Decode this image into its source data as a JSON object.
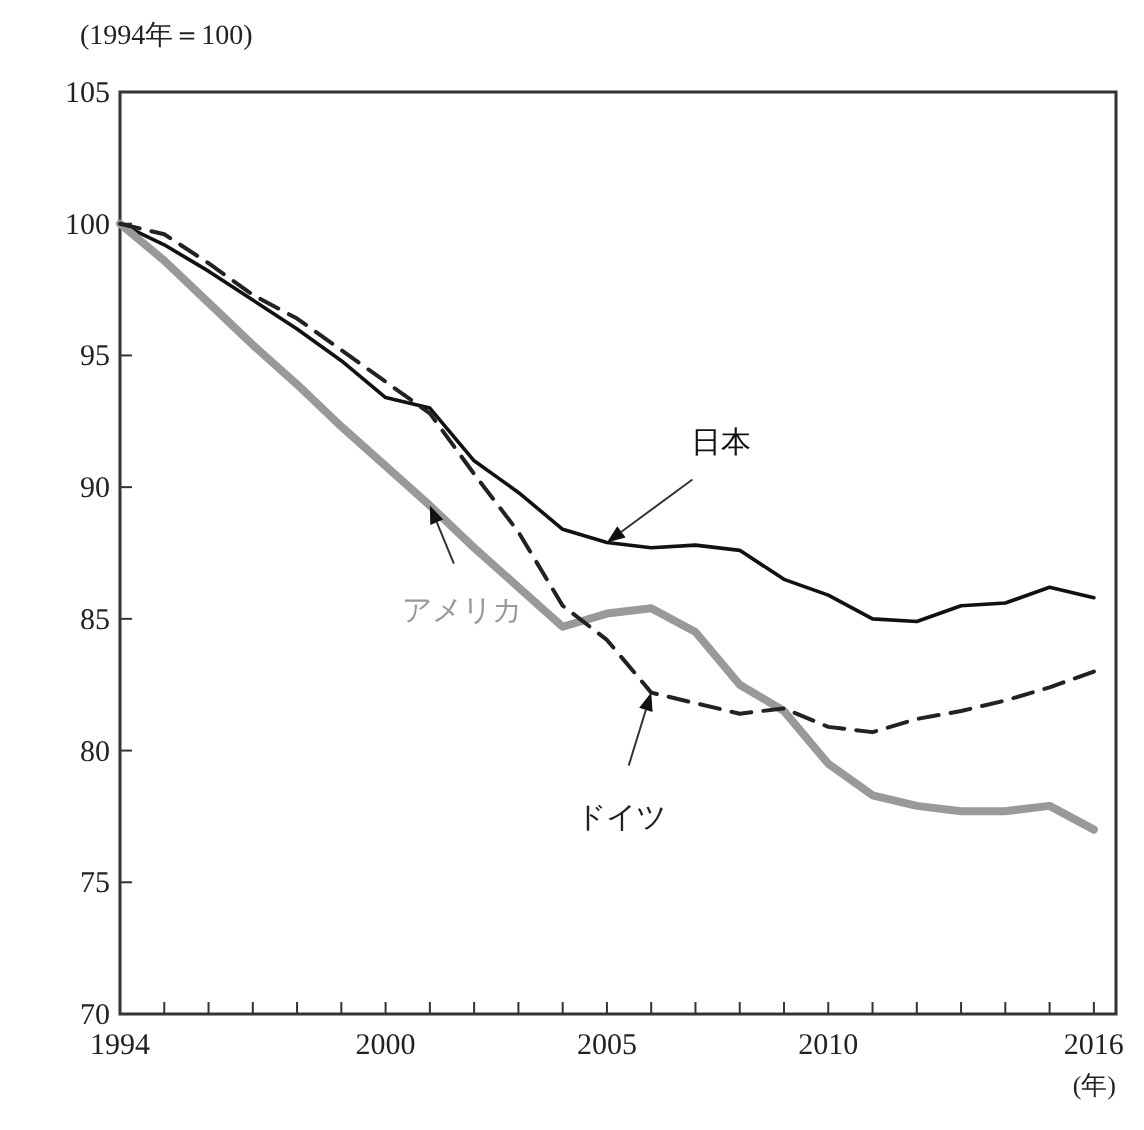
{
  "chart_data": {
    "type": "line",
    "ylabel": "(1994年＝100)",
    "xlabel": "(年)",
    "x": [
      1994,
      1995,
      1996,
      1997,
      1998,
      1999,
      2000,
      2001,
      2002,
      2003,
      2004,
      2005,
      2006,
      2007,
      2008,
      2009,
      2010,
      2011,
      2012,
      2013,
      2014,
      2015,
      2016
    ],
    "series": [
      {
        "name": "日本",
        "color": "#111111",
        "line_style": "solid",
        "values": [
          100,
          99.2,
          98.2,
          97.1,
          96.0,
          94.8,
          93.4,
          93.0,
          91.0,
          89.8,
          88.4,
          87.9,
          87.7,
          87.8,
          87.6,
          86.5,
          85.9,
          85.0,
          84.9,
          85.5,
          85.6,
          86.2,
          85.8
        ]
      },
      {
        "name": "アメリカ",
        "color": "#999999",
        "line_style": "solid",
        "values": [
          100,
          98.6,
          97.0,
          95.4,
          93.9,
          92.3,
          90.8,
          89.3,
          87.7,
          86.2,
          84.7,
          85.2,
          85.4,
          84.5,
          82.5,
          81.5,
          79.5,
          78.3,
          77.9,
          77.7,
          77.7,
          77.9,
          77.0
        ]
      },
      {
        "name": "ドイツ",
        "color": "#222222",
        "line_style": "dashed",
        "values": [
          100,
          99.6,
          98.5,
          97.3,
          96.4,
          95.2,
          94.0,
          92.8,
          90.5,
          88.3,
          85.5,
          84.2,
          82.2,
          81.8,
          81.4,
          81.6,
          80.9,
          80.7,
          81.2,
          81.5,
          81.9,
          82.4,
          83.0
        ]
      }
    ],
    "xlim": [
      1994,
      2016.5
    ],
    "xticks": [
      1994,
      {
        "value": 1995,
        "label": null
      },
      {
        "value": 1996,
        "label": null
      },
      {
        "value": 1997,
        "label": null
      },
      {
        "value": 1998,
        "label": null
      },
      {
        "value": 1999,
        "label": null
      },
      2000,
      {
        "value": 2001,
        "label": null
      },
      {
        "value": 2002,
        "label": null
      },
      {
        "value": 2003,
        "label": null
      },
      {
        "value": 2004,
        "label": null
      },
      2005,
      {
        "value": 2006,
        "label": null
      },
      {
        "value": 2007,
        "label": null
      },
      {
        "value": 2008,
        "label": null
      },
      {
        "value": 2009,
        "label": null
      },
      2010,
      {
        "value": 2011,
        "label": null
      },
      {
        "value": 2012,
        "label": null
      },
      {
        "value": 2013,
        "label": null
      },
      {
        "value": 2014,
        "label": null
      },
      {
        "value": 2015,
        "label": null
      },
      2016
    ],
    "ylim": [
      70,
      105
    ],
    "yticks": [
      70,
      75,
      80,
      85,
      90,
      95,
      100,
      105
    ],
    "grid": false,
    "marker": "none"
  }
}
